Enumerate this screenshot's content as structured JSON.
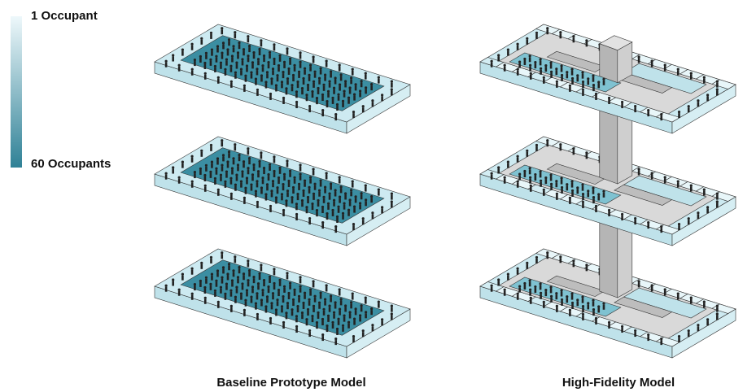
{
  "legend": {
    "min_label": "1 Occupant",
    "max_label": "60 Occupants"
  },
  "models": [
    {
      "label": "Baseline Prototype Model"
    },
    {
      "label": "High-Fidelity Model"
    }
  ]
}
